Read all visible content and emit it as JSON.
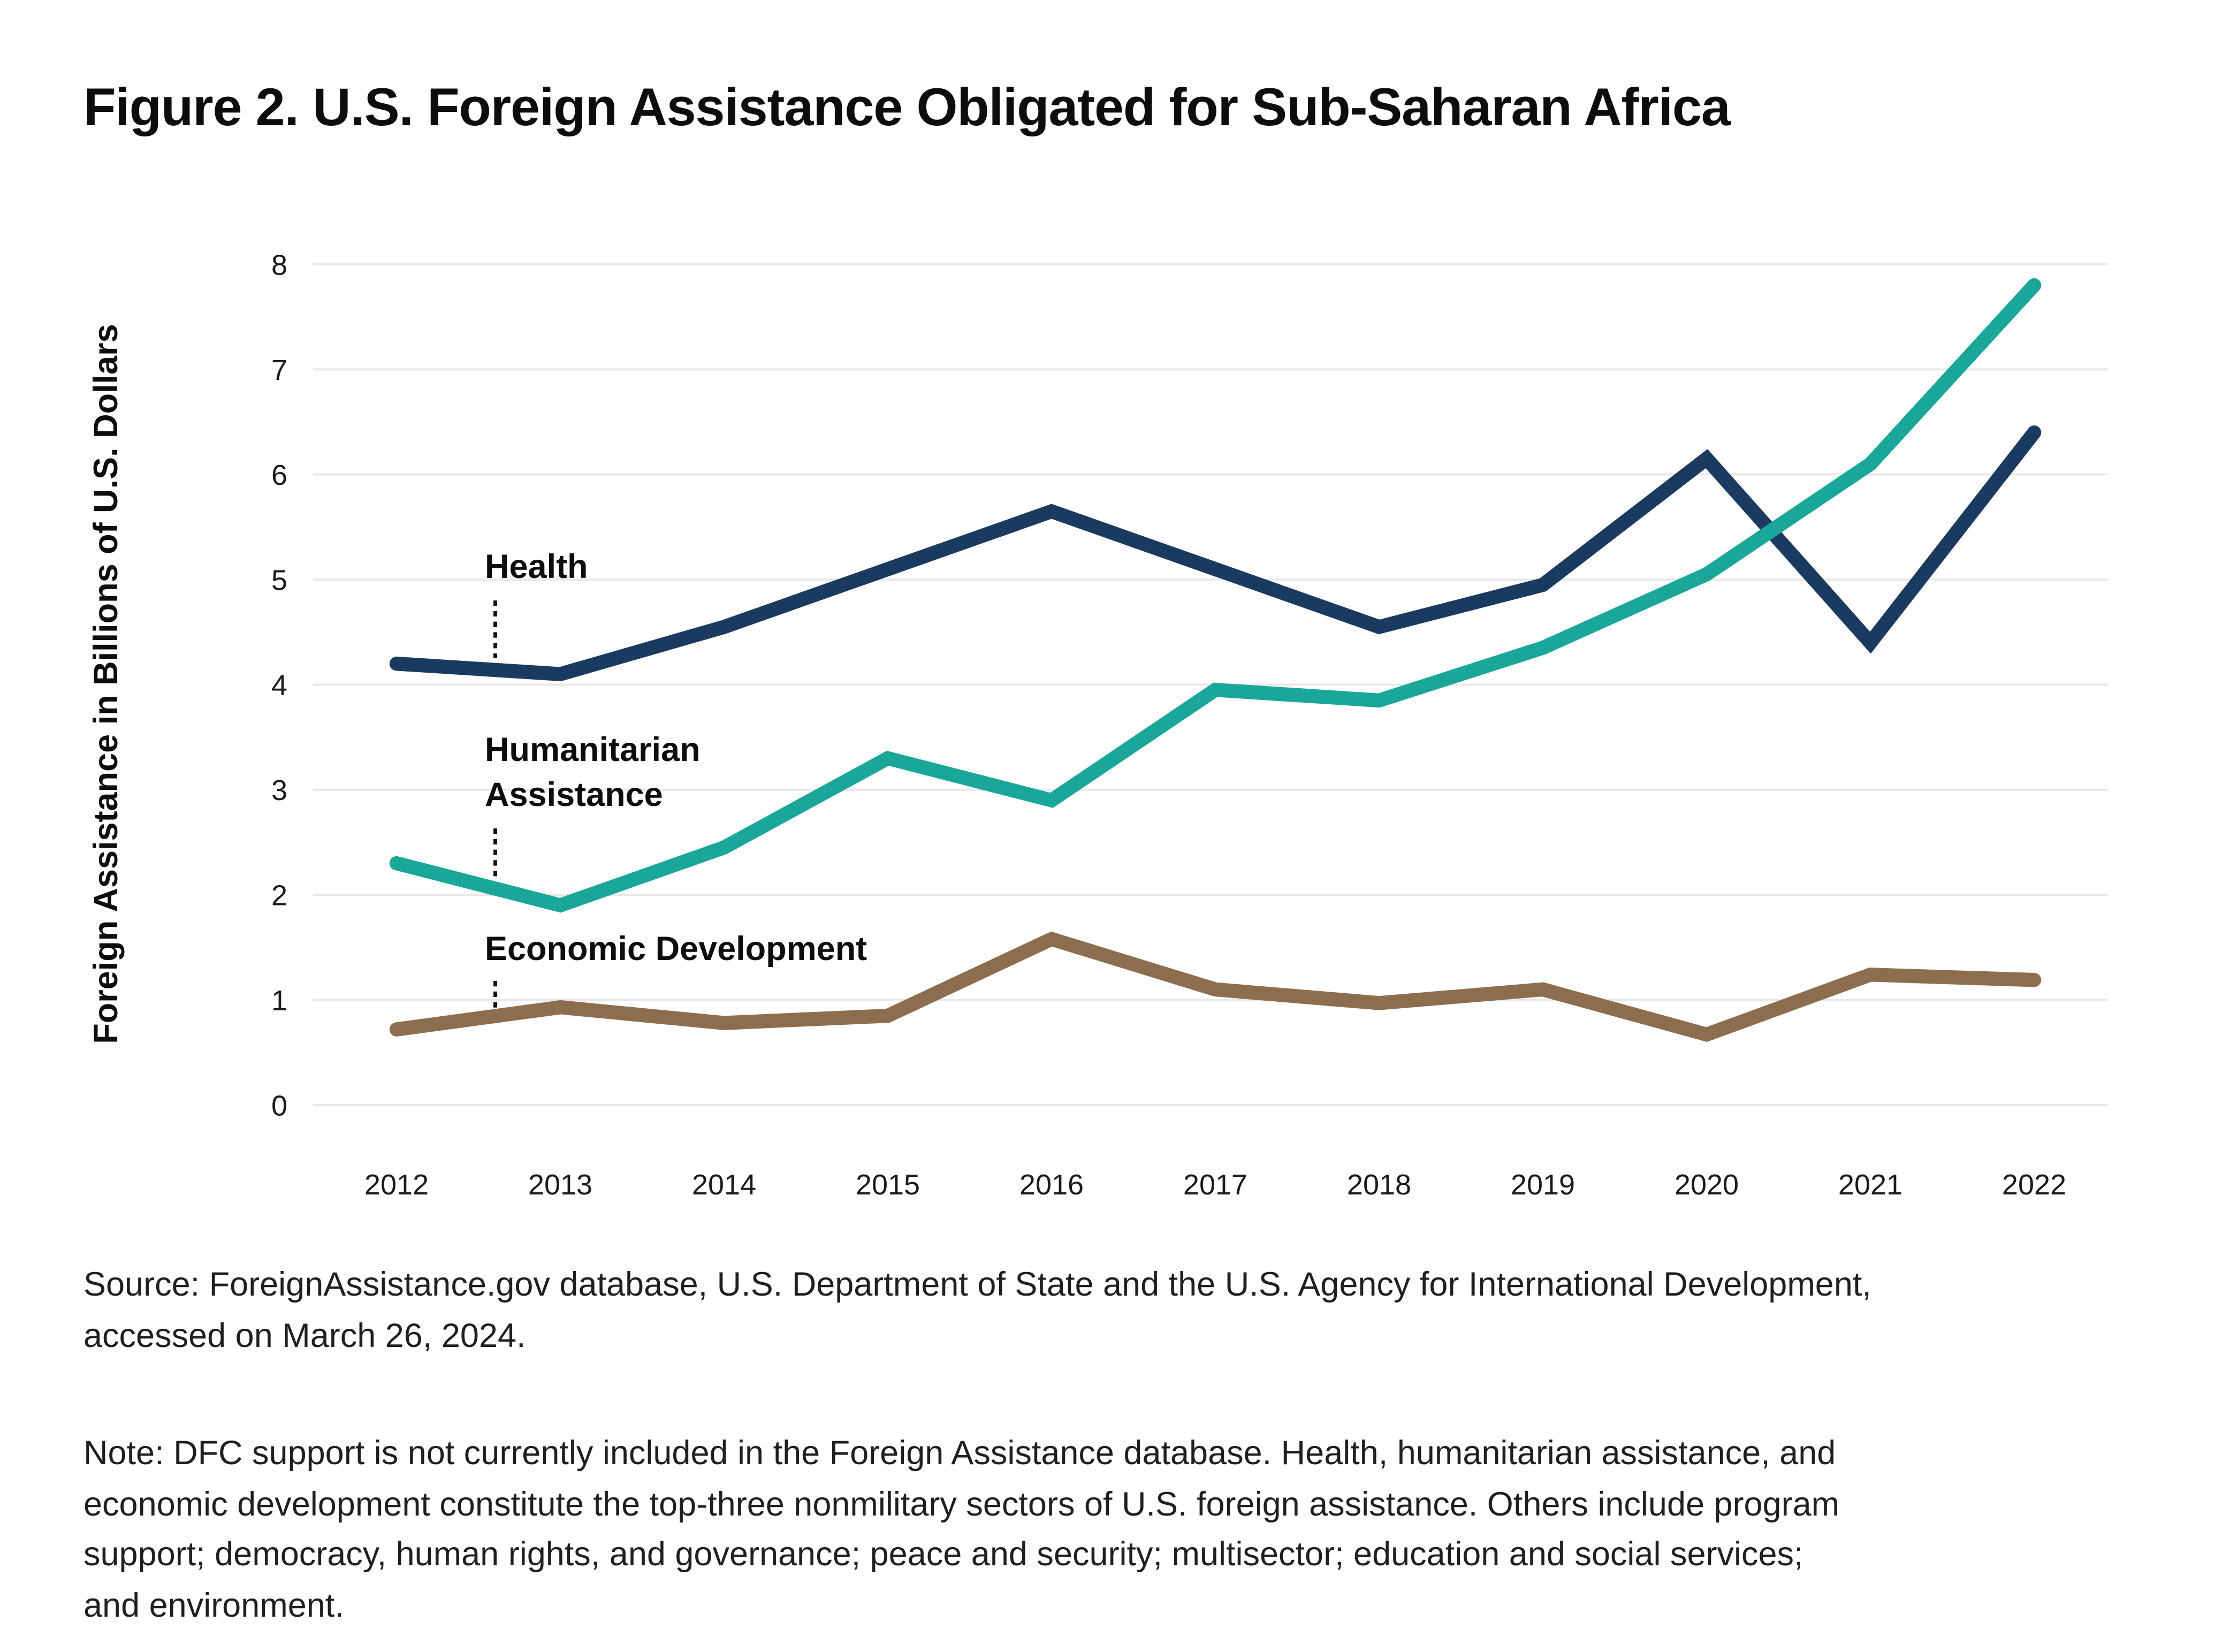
{
  "title": "Figure 2. U.S. Foreign Assistance Obligated for Sub-Saharan Africa",
  "chart_data": {
    "type": "line",
    "x": [
      2012,
      2013,
      2014,
      2015,
      2016,
      2017,
      2018,
      2019,
      2020,
      2021,
      2022
    ],
    "series": [
      {
        "name": "Health",
        "color": "#1b3a5f",
        "values": [
          4.2,
          4.1,
          4.55,
          5.1,
          5.65,
          5.1,
          4.55,
          4.95,
          6.15,
          4.4,
          6.4
        ]
      },
      {
        "name": "Humanitarian Assistance",
        "color": "#1aa79a",
        "values": [
          2.3,
          1.9,
          2.45,
          3.3,
          2.9,
          3.95,
          3.85,
          4.35,
          5.05,
          6.1,
          7.8
        ]
      },
      {
        "name": "Economic Development",
        "color": "#8c6e4f",
        "values": [
          0.72,
          0.93,
          0.78,
          0.85,
          1.58,
          1.1,
          0.97,
          1.1,
          0.67,
          1.24,
          1.19
        ]
      }
    ],
    "title": "Figure 2. U.S. Foreign Assistance Obligated for Sub-Saharan Africa",
    "xlabel": "",
    "ylabel": "Foreign Assistance in Billions of U.S. Dollars",
    "ylim": [
      0,
      8
    ],
    "yticks": [
      0,
      1,
      2,
      3,
      4,
      5,
      6,
      7,
      8
    ],
    "grid": true,
    "legend_position": "inline-annotations",
    "annotations": [
      {
        "series": "Health",
        "lines": [
          "Health"
        ]
      },
      {
        "series": "Humanitarian Assistance",
        "lines": [
          "Humanitarian",
          "Assistance"
        ]
      },
      {
        "series": "Economic Development",
        "lines": [
          "Economic Development"
        ]
      }
    ],
    "gridline_color": "#e8e8e8"
  },
  "source_text": "Source: ForeignAssistance.gov database, U.S. Department of State and the U.S. Agency for International Development,\naccessed on March 26, 2024.",
  "note_text": "Note: DFC support is not currently included in the Foreign Assistance database. Health, humanitarian assistance, and\neconomic development constitute the top-three nonmilitary sectors of U.S. foreign assistance. Others include program\nsupport; democracy, human rights, and governance; peace and security; multisector; education and social services;\nand environment."
}
